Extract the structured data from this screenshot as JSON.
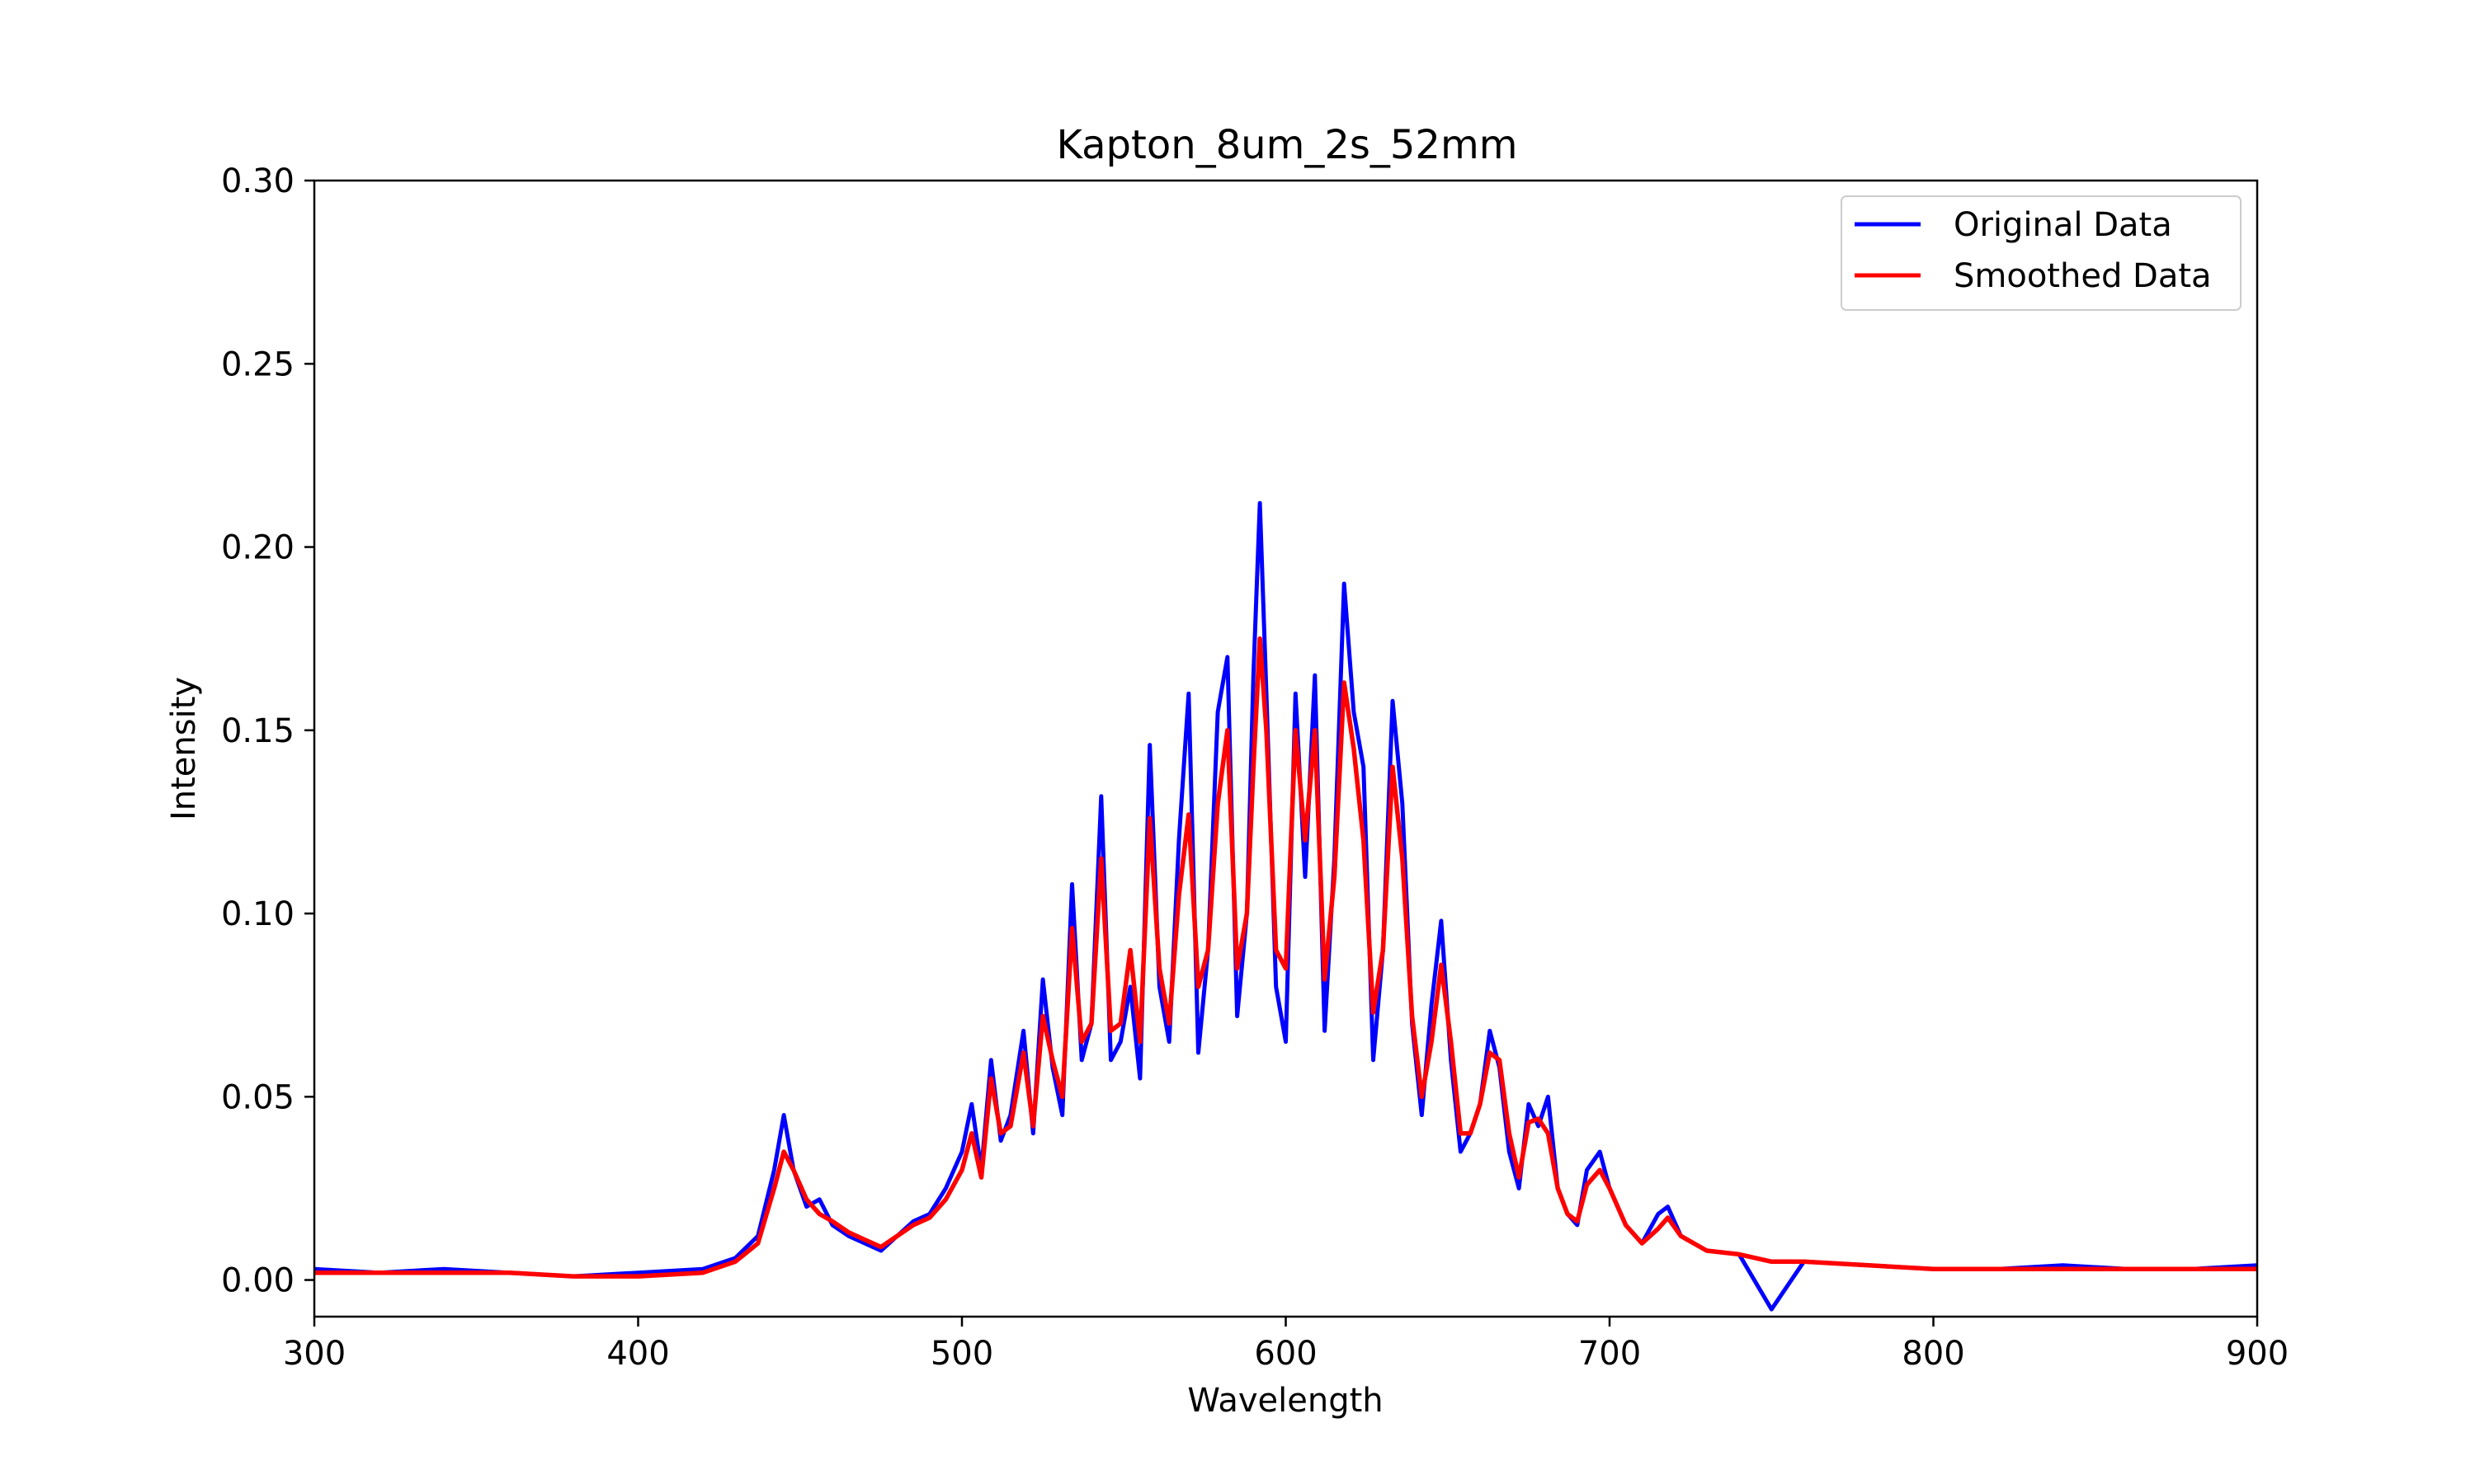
{
  "chart_data": {
    "type": "line",
    "title": "Kapton_8um_2s_52mm",
    "xlabel": "Wavelength",
    "ylabel": "Intensity",
    "xlim": [
      300,
      900
    ],
    "ylim": [
      -0.01,
      0.3
    ],
    "xticks": [
      300,
      400,
      500,
      600,
      700,
      800,
      900
    ],
    "xtick_labels": [
      "300",
      "400",
      "500",
      "600",
      "700",
      "800",
      "900"
    ],
    "yticks": [
      0.0,
      0.05,
      0.1,
      0.15,
      0.2,
      0.25,
      0.3
    ],
    "ytick_labels": [
      "0.00",
      "0.05",
      "0.10",
      "0.15",
      "0.20",
      "0.25",
      "0.30"
    ],
    "grid": false,
    "legend_position": "top-right",
    "series": [
      {
        "name": "Original Data",
        "color": "#0000ff",
        "x": [
          300,
          320,
          340,
          360,
          380,
          400,
          420,
          430,
          437,
          442,
          445,
          448,
          452,
          456,
          460,
          465,
          470,
          475,
          480,
          485,
          490,
          495,
          500,
          503,
          506,
          509,
          512,
          515,
          519,
          522,
          525,
          528,
          531,
          534,
          537,
          540,
          543,
          546,
          549,
          552,
          555,
          558,
          561,
          564,
          567,
          570,
          573,
          576,
          579,
          582,
          585,
          588,
          590,
          592,
          594,
          597,
          600,
          603,
          606,
          609,
          612,
          615,
          618,
          621,
          624,
          627,
          630,
          633,
          636,
          639,
          642,
          645,
          648,
          651,
          654,
          657,
          660,
          663,
          666,
          669,
          672,
          675,
          678,
          681,
          684,
          687,
          690,
          693,
          697,
          700,
          705,
          710,
          715,
          718,
          722,
          730,
          740,
          750,
          760,
          780,
          800,
          820,
          840,
          860,
          880,
          900
        ],
        "y": [
          0.003,
          0.002,
          0.003,
          0.002,
          0.001,
          0.002,
          0.003,
          0.006,
          0.012,
          0.03,
          0.045,
          0.03,
          0.02,
          0.022,
          0.015,
          0.012,
          0.01,
          0.008,
          0.012,
          0.016,
          0.018,
          0.025,
          0.035,
          0.048,
          0.03,
          0.06,
          0.038,
          0.045,
          0.068,
          0.04,
          0.082,
          0.058,
          0.045,
          0.108,
          0.06,
          0.07,
          0.132,
          0.06,
          0.065,
          0.08,
          0.055,
          0.146,
          0.08,
          0.065,
          0.12,
          0.16,
          0.062,
          0.09,
          0.155,
          0.17,
          0.072,
          0.1,
          0.165,
          0.212,
          0.16,
          0.08,
          0.065,
          0.16,
          0.11,
          0.165,
          0.068,
          0.115,
          0.19,
          0.155,
          0.14,
          0.06,
          0.09,
          0.158,
          0.13,
          0.07,
          0.045,
          0.075,
          0.098,
          0.06,
          0.035,
          0.04,
          0.048,
          0.068,
          0.058,
          0.035,
          0.025,
          0.048,
          0.042,
          0.05,
          0.025,
          0.018,
          0.015,
          0.03,
          0.035,
          0.025,
          0.015,
          0.01,
          0.018,
          0.02,
          0.012,
          0.008,
          0.007,
          -0.008,
          0.005,
          0.004,
          0.003,
          0.003,
          0.004,
          0.003,
          0.003,
          0.004
        ]
      },
      {
        "name": "Smoothed Data",
        "color": "#ff0000",
        "x": [
          300,
          320,
          340,
          360,
          380,
          400,
          420,
          430,
          437,
          442,
          445,
          448,
          452,
          456,
          460,
          465,
          470,
          475,
          480,
          485,
          490,
          495,
          500,
          503,
          506,
          509,
          512,
          515,
          519,
          522,
          525,
          528,
          531,
          534,
          537,
          540,
          543,
          546,
          549,
          552,
          555,
          558,
          561,
          564,
          567,
          570,
          573,
          576,
          579,
          582,
          585,
          588,
          590,
          592,
          594,
          597,
          600,
          603,
          606,
          609,
          612,
          615,
          618,
          621,
          624,
          627,
          630,
          633,
          636,
          639,
          642,
          645,
          648,
          651,
          654,
          657,
          660,
          663,
          666,
          669,
          672,
          675,
          678,
          681,
          684,
          687,
          690,
          693,
          697,
          700,
          705,
          710,
          715,
          718,
          722,
          730,
          740,
          750,
          760,
          780,
          800,
          820,
          840,
          860,
          880,
          900
        ],
        "y": [
          0.002,
          0.002,
          0.002,
          0.002,
          0.001,
          0.001,
          0.002,
          0.005,
          0.01,
          0.025,
          0.035,
          0.03,
          0.022,
          0.018,
          0.016,
          0.013,
          0.011,
          0.009,
          0.012,
          0.015,
          0.017,
          0.022,
          0.03,
          0.04,
          0.028,
          0.055,
          0.04,
          0.042,
          0.062,
          0.042,
          0.072,
          0.06,
          0.05,
          0.096,
          0.065,
          0.07,
          0.115,
          0.068,
          0.07,
          0.09,
          0.065,
          0.126,
          0.085,
          0.07,
          0.105,
          0.127,
          0.08,
          0.09,
          0.13,
          0.15,
          0.085,
          0.1,
          0.14,
          0.175,
          0.15,
          0.09,
          0.085,
          0.15,
          0.12,
          0.15,
          0.082,
          0.11,
          0.163,
          0.145,
          0.12,
          0.073,
          0.09,
          0.14,
          0.115,
          0.072,
          0.05,
          0.065,
          0.086,
          0.065,
          0.04,
          0.04,
          0.048,
          0.062,
          0.06,
          0.04,
          0.028,
          0.043,
          0.044,
          0.04,
          0.025,
          0.018,
          0.016,
          0.026,
          0.03,
          0.025,
          0.015,
          0.01,
          0.014,
          0.017,
          0.012,
          0.008,
          0.007,
          0.005,
          0.005,
          0.004,
          0.003,
          0.003,
          0.003,
          0.003,
          0.003,
          0.003
        ]
      }
    ]
  }
}
